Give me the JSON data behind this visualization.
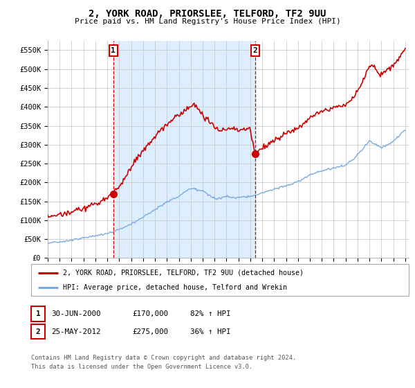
{
  "title": "2, YORK ROAD, PRIORSLEE, TELFORD, TF2 9UU",
  "subtitle": "Price paid vs. HM Land Registry's House Price Index (HPI)",
  "legend_line1": "2, YORK ROAD, PRIORSLEE, TELFORD, TF2 9UU (detached house)",
  "legend_line2": "HPI: Average price, detached house, Telford and Wrekin",
  "marker1_date": "30-JUN-2000",
  "marker1_price": 170000,
  "marker1_label": "82% ↑ HPI",
  "marker2_date": "25-MAY-2012",
  "marker2_price": 275000,
  "marker2_label": "36% ↑ HPI",
  "footnote1": "Contains HM Land Registry data © Crown copyright and database right 2024.",
  "footnote2": "This data is licensed under the Open Government Licence v3.0.",
  "red_color": "#cc0000",
  "blue_color": "#7aaadd",
  "shade_color": "#ddeeff",
  "marker_box_color": "#cc0000",
  "ylim": [
    0,
    575000
  ],
  "yticks": [
    0,
    50000,
    100000,
    150000,
    200000,
    250000,
    300000,
    350000,
    400000,
    450000,
    500000,
    550000
  ],
  "background_color": "#ffffff",
  "grid_color": "#cccccc",
  "hpi_x": [
    1995,
    1996,
    1997,
    1998,
    1999,
    2000,
    2001,
    2002,
    2003,
    2004,
    2005,
    2006,
    2007,
    2008,
    2009,
    2010,
    2011,
    2012,
    2013,
    2014,
    2015,
    2016,
    2017,
    2018,
    2019,
    2020,
    2021,
    2022,
    2023,
    2024,
    2025
  ],
  "hpi_y": [
    40000,
    43000,
    48000,
    53000,
    59000,
    66000,
    76000,
    90000,
    108000,
    128000,
    148000,
    165000,
    185000,
    178000,
    158000,
    163000,
    160000,
    163000,
    172000,
    182000,
    192000,
    202000,
    220000,
    232000,
    238000,
    245000,
    272000,
    310000,
    292000,
    308000,
    340000
  ],
  "red_x": [
    1995.0,
    1995.5,
    1996.0,
    1996.5,
    1997.0,
    1997.5,
    1998.0,
    1998.5,
    1999.0,
    1999.5,
    2000.5,
    2001.0,
    2001.5,
    2002.0,
    2002.5,
    2003.0,
    2003.5,
    2004.0,
    2004.5,
    2005.0,
    2005.5,
    2006.0,
    2006.5,
    2007.0,
    2007.3,
    2007.6,
    2008.0,
    2008.5,
    2009.0,
    2009.5,
    2010.0,
    2010.5,
    2011.0,
    2011.5,
    2012.0,
    2012.4,
    2012.5,
    2013.0,
    2013.5,
    2014.0,
    2014.5,
    2015.0,
    2015.5,
    2016.0,
    2016.5,
    2017.0,
    2017.5,
    2018.0,
    2018.5,
    2019.0,
    2019.5,
    2020.0,
    2020.5,
    2021.0,
    2021.5,
    2022.0,
    2022.3,
    2022.6,
    2023.0,
    2023.5,
    2024.0,
    2024.5,
    2025.0
  ],
  "red_y": [
    108000,
    112000,
    115000,
    118000,
    122000,
    128000,
    133000,
    138000,
    143000,
    150000,
    170000,
    190000,
    210000,
    240000,
    265000,
    285000,
    300000,
    320000,
    340000,
    355000,
    368000,
    378000,
    392000,
    400000,
    405000,
    395000,
    380000,
    365000,
    345000,
    335000,
    340000,
    345000,
    338000,
    340000,
    342000,
    275000,
    278000,
    290000,
    300000,
    312000,
    322000,
    332000,
    338000,
    345000,
    355000,
    370000,
    380000,
    388000,
    392000,
    398000,
    402000,
    405000,
    420000,
    445000,
    470000,
    505000,
    510000,
    495000,
    490000,
    500000,
    510000,
    530000,
    555000
  ],
  "sale1_year": 2000.5,
  "sale2_year": 2012.4
}
